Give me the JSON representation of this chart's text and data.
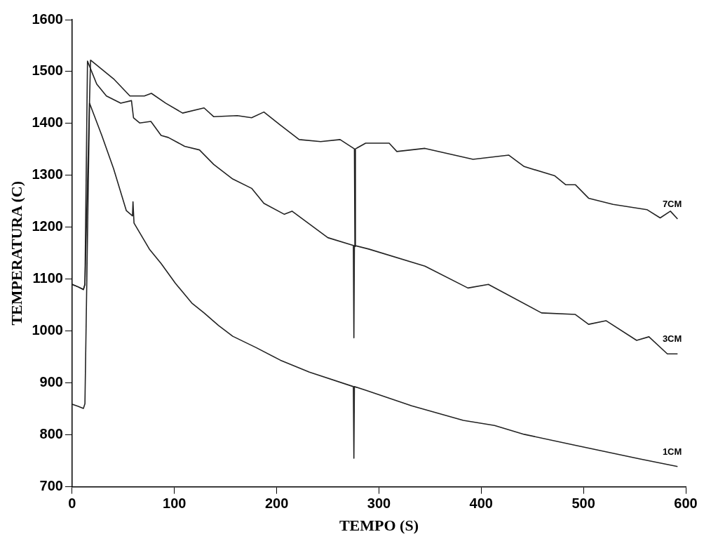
{
  "chart_data": {
    "type": "line",
    "xlabel": "TEMPO (S)",
    "ylabel": "TEMPERATURA (C)",
    "xlim": [
      0,
      600
    ],
    "xticks": [
      0,
      100,
      200,
      300,
      400,
      500,
      600
    ],
    "ylim": [
      700,
      1600
    ],
    "yticks": [
      700,
      800,
      900,
      1000,
      1100,
      1200,
      1300,
      1400,
      1500,
      1600
    ],
    "grid": false,
    "legend": false,
    "marker": "none",
    "line_style": "solid",
    "series": [
      {
        "name": "7CM",
        "color": "#222222",
        "x": [
          0,
          6,
          11,
          12.5,
          18,
          40.5,
          56.5,
          70.6,
          77.5,
          91.6,
          108,
          129,
          138.5,
          161.5,
          175.5,
          187.5,
          203.5,
          222,
          243,
          262,
          276,
          276.5,
          277,
          287,
          310,
          317.5,
          345,
          392,
          427,
          442,
          472,
          482.5,
          492,
          505,
          529,
          562,
          575,
          585,
          592
        ],
        "values": [
          1090,
          1085,
          1080,
          1090,
          1522,
          1486,
          1453,
          1453,
          1458,
          1439,
          1420,
          1430,
          1413,
          1415,
          1411,
          1422,
          1397,
          1369,
          1365,
          1369,
          1351,
          1163,
          1351,
          1362,
          1362,
          1346,
          1352,
          1331,
          1339,
          1317,
          1299,
          1282,
          1282,
          1256,
          1244,
          1234,
          1218,
          1231,
          1216
        ]
      },
      {
        "name": "3CM",
        "color": "#222222",
        "x": [
          0,
          6,
          11,
          12.5,
          15,
          24,
          33.5,
          47.5,
          58,
          60,
          66,
          77,
          87,
          94,
          110,
          124.5,
          138.5,
          157,
          175.5,
          187.5,
          207.5,
          215,
          250,
          275,
          275.5,
          276,
          290,
          345,
          387,
          407,
          459,
          492,
          505,
          522,
          552,
          564,
          582,
          592
        ],
        "values": [
          1090,
          1085,
          1080,
          1090,
          1520,
          1476,
          1453,
          1439,
          1444,
          1411,
          1401,
          1404,
          1377,
          1373,
          1356,
          1349,
          1321,
          1293,
          1275,
          1246,
          1225,
          1231,
          1180,
          1165,
          987,
          1165,
          1158,
          1125,
          1083,
          1090,
          1035,
          1032,
          1013,
          1020,
          982,
          989,
          956,
          956
        ]
      },
      {
        "name": "1CM",
        "color": "#222222",
        "x": [
          0,
          6,
          11,
          12.5,
          17,
          29,
          40.5,
          53,
          59,
          59.5,
          60.5,
          75.5,
          87,
          101,
          117,
          129,
          143,
          157,
          180,
          203.5,
          232,
          275,
          275.5,
          276,
          287,
          332,
          382.5,
          413,
          442,
          492,
          554.5,
          592
        ],
        "values": [
          859,
          855,
          851,
          860,
          1439,
          1377,
          1313,
          1232,
          1222,
          1249,
          1208,
          1158,
          1130,
          1092,
          1054,
          1035,
          1011,
          990,
          968,
          944,
          921,
          893,
          755,
          893,
          886,
          856,
          828,
          818,
          801,
          780,
          754,
          739
        ]
      }
    ]
  }
}
